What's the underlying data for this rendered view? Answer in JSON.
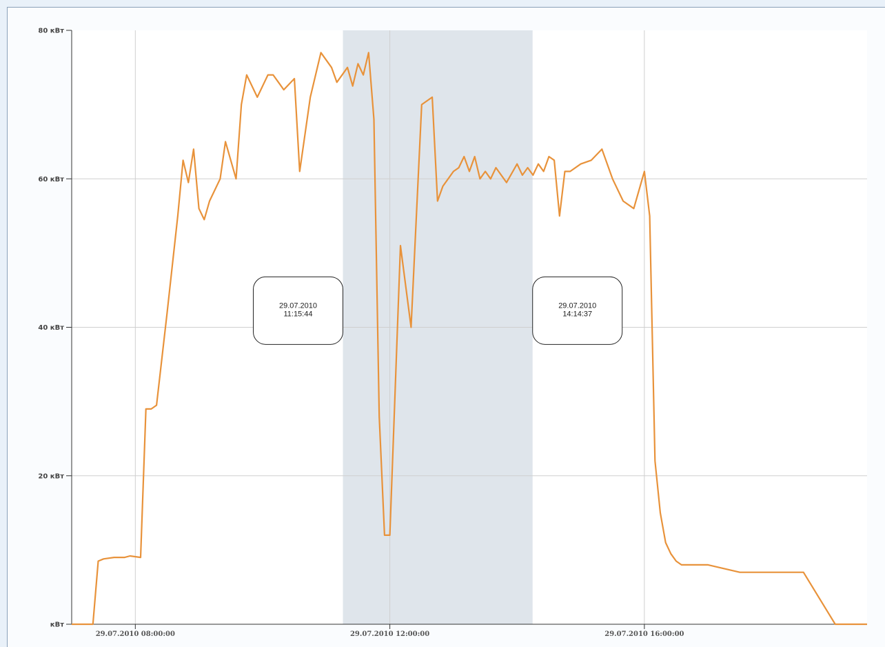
{
  "chart_data": {
    "type": "line",
    "title": "",
    "xlabel": "",
    "ylabel": "",
    "y_unit": "кВт",
    "ylim": [
      0,
      80
    ],
    "xlim": [
      "29.07.2010 07:00:00",
      "29.07.2010 19:30:00"
    ],
    "grid": true,
    "line_color": "#e8923a",
    "selection_color": "#dfe5eb",
    "y_ticks": [
      {
        "value": 0,
        "label": "кВт"
      },
      {
        "value": 20,
        "label": "20 кВт"
      },
      {
        "value": 40,
        "label": "40 кВт"
      },
      {
        "value": 60,
        "label": "60 кВт"
      },
      {
        "value": 80,
        "label": "80 кВт"
      }
    ],
    "x_ticks": [
      {
        "value": "29.07.2010 08:00:00",
        "label": "29.07.2010 08:00:00"
      },
      {
        "value": "29.07.2010 12:00:00",
        "label": "29.07.2010 12:00:00"
      },
      {
        "value": "29.07.2010 16:00:00",
        "label": "29.07.2010 16:00:00"
      }
    ],
    "selection": {
      "start": "29.07.2010 11:15:44",
      "end": "29.07.2010 14:14:37"
    },
    "markers": [
      {
        "date": "29.07.2010",
        "time": "11:15:44"
      },
      {
        "date": "29.07.2010",
        "time": "14:14:37"
      }
    ],
    "series": [
      {
        "x": [
          "07:00",
          "07:15",
          "07:20",
          "07:25",
          "07:30",
          "07:40",
          "07:50",
          "07:55",
          "08:05",
          "08:10",
          "08:15",
          "08:20",
          "08:30",
          "08:40",
          "08:45",
          "08:50",
          "08:55",
          "09:00",
          "09:05",
          "09:10",
          "09:20",
          "09:25",
          "09:35",
          "09:40",
          "09:45",
          "09:55",
          "10:05",
          "10:10",
          "10:15",
          "10:20",
          "10:30",
          "10:35",
          "10:45",
          "10:55",
          "11:05",
          "11:10",
          "11:20",
          "11:25",
          "11:30",
          "11:35",
          "11:40",
          "11:45",
          "11:50",
          "11:55",
          "12:00",
          "12:10",
          "12:20",
          "12:30",
          "12:40",
          "12:45",
          "12:50",
          "13:00",
          "13:05",
          "13:10",
          "13:15",
          "13:20",
          "13:25",
          "13:30",
          "13:35",
          "13:40",
          "13:50",
          "14:00",
          "14:05",
          "14:10",
          "14:15",
          "14:20",
          "14:25",
          "14:30",
          "14:35",
          "14:40",
          "14:45",
          "14:50",
          "15:00",
          "15:10",
          "15:20",
          "15:30",
          "15:40",
          "15:50",
          "16:00",
          "16:05",
          "16:10",
          "16:15",
          "16:20",
          "16:25",
          "16:30",
          "16:35",
          "16:40",
          "16:45",
          "16:50",
          "17:00",
          "17:15",
          "17:30",
          "18:00",
          "18:15",
          "18:30",
          "19:00",
          "19:10",
          "19:20",
          "19:25",
          "19:30"
        ],
        "y": [
          0,
          0,
          0,
          8.5,
          8.8,
          9,
          9,
          9.2,
          9,
          29,
          29,
          29.5,
          42,
          55,
          62.5,
          59.5,
          64,
          56,
          54.5,
          57,
          60,
          65,
          60,
          70,
          74,
          71,
          74,
          74,
          73,
          72,
          73.5,
          61,
          71,
          77,
          75,
          73,
          75,
          72.5,
          75.5,
          74,
          77,
          68,
          28,
          12,
          12,
          51,
          40,
          70,
          71,
          57,
          59,
          61,
          61.5,
          63,
          61,
          63,
          60,
          61,
          60,
          61.5,
          59.5,
          62,
          60.5,
          61.5,
          60.5,
          62,
          61,
          63,
          62.5,
          55,
          61,
          61,
          62,
          62.5,
          64,
          60,
          57,
          56,
          61,
          55,
          22,
          15,
          11,
          9.5,
          8.5,
          8,
          8,
          8,
          8,
          8,
          7.5,
          7,
          7,
          7,
          7,
          0,
          0,
          0,
          0,
          0
        ]
      }
    ]
  }
}
